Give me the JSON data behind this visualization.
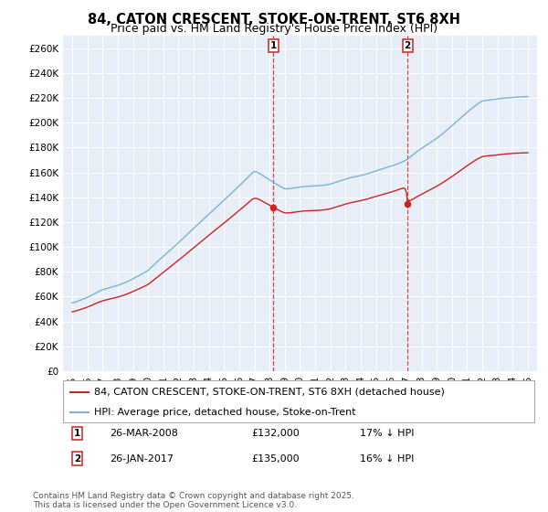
{
  "title": "84, CATON CRESCENT, STOKE-ON-TRENT, ST6 8XH",
  "subtitle": "Price paid vs. HM Land Registry's House Price Index (HPI)",
  "ylim": [
    0,
    270000
  ],
  "yticks": [
    0,
    20000,
    40000,
    60000,
    80000,
    100000,
    120000,
    140000,
    160000,
    180000,
    200000,
    220000,
    240000,
    260000
  ],
  "ytick_labels": [
    "£0",
    "£20K",
    "£40K",
    "£60K",
    "£80K",
    "£100K",
    "£120K",
    "£140K",
    "£160K",
    "£180K",
    "£200K",
    "£220K",
    "£240K",
    "£260K"
  ],
  "hpi_color": "#7ab3d4",
  "sale_color": "#cc2222",
  "vline_color": "#cc2222",
  "annotation_box_color": "#cc2222",
  "background_color": "#ffffff",
  "plot_bg_color": "#e8eef8",
  "legend_items": [
    "84, CATON CRESCENT, STOKE-ON-TRENT, ST6 8XH (detached house)",
    "HPI: Average price, detached house, Stoke-on-Trent"
  ],
  "sale1_date_str": "26-MAR-2008",
  "sale1_price": 132000,
  "sale1_hpi_pct": "17%",
  "sale1_year": 2008.23,
  "sale2_date_str": "26-JAN-2017",
  "sale2_price": 135000,
  "sale2_hpi_pct": "16%",
  "sale2_year": 2017.07,
  "footnote": "Contains HM Land Registry data © Crown copyright and database right 2025.\nThis data is licensed under the Open Government Licence v3.0.",
  "title_fontsize": 10.5,
  "subtitle_fontsize": 9,
  "tick_fontsize": 7.5,
  "legend_fontsize": 8,
  "annotation_fontsize": 8,
  "footnote_fontsize": 6.5
}
